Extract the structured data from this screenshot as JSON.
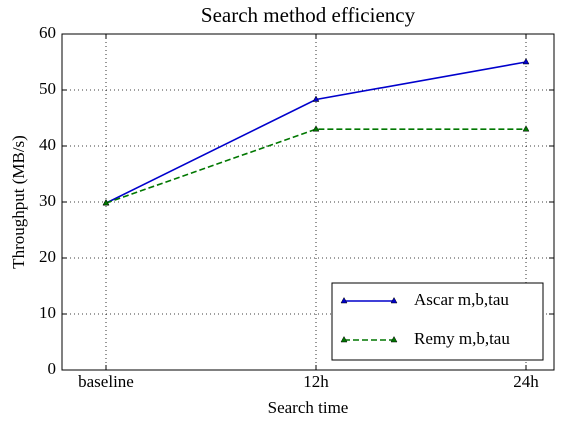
{
  "chart_data": {
    "type": "line",
    "title": "Search method efficiency",
    "xlabel": "Search time",
    "ylabel": "Throughput (MB/s)",
    "categories": [
      "baseline",
      "12h",
      "24h"
    ],
    "series": [
      {
        "name": "Ascar m,b,tau",
        "color": "#0000cc",
        "dash": "solid",
        "values": [
          29.8,
          48.3,
          55
        ]
      },
      {
        "name": "Remy m,b,tau",
        "color": "#007700",
        "dash": "dashed",
        "values": [
          29.8,
          43,
          43
        ]
      }
    ],
    "ylim": [
      0,
      60
    ],
    "yticks": [
      0,
      10,
      20,
      30,
      40,
      50,
      60
    ],
    "grid": true,
    "legend": "lower right"
  }
}
